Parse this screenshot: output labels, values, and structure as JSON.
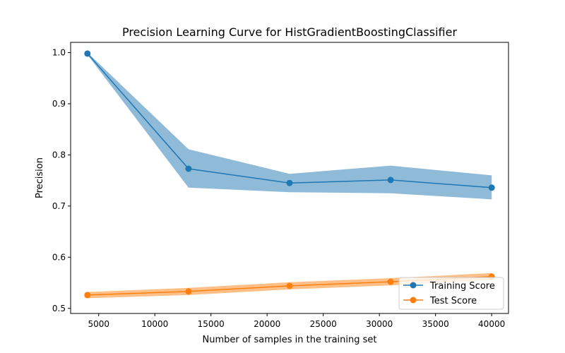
{
  "chart_data": {
    "type": "line",
    "title": "Precision Learning Curve for HistGradientBoostingClassifier",
    "xlabel": "Number of samples in the training set",
    "ylabel": "Precision",
    "xlim": [
      2500,
      41500
    ],
    "ylim": [
      0.49,
      1.02
    ],
    "xticks": [
      5000,
      10000,
      15000,
      20000,
      25000,
      30000,
      35000,
      40000
    ],
    "yticks": [
      0.5,
      0.6,
      0.7,
      0.8,
      0.9,
      1.0
    ],
    "ytick_labels": [
      "0.5",
      "0.6",
      "0.7",
      "0.8",
      "0.9",
      "1.0"
    ],
    "x": [
      4000,
      13000,
      22000,
      31000,
      40000
    ],
    "series": [
      {
        "name": "Training Score",
        "color": "#1f77b4",
        "values": [
          0.998,
          0.773,
          0.745,
          0.751,
          0.736
        ],
        "lower": [
          0.996,
          0.736,
          0.727,
          0.725,
          0.713
        ],
        "upper": [
          1.0,
          0.811,
          0.763,
          0.779,
          0.76
        ]
      },
      {
        "name": "Test Score",
        "color": "#ff7f0e",
        "values": [
          0.526,
          0.533,
          0.544,
          0.552,
          0.562
        ],
        "lower": [
          0.52,
          0.526,
          0.537,
          0.545,
          0.555
        ],
        "upper": [
          0.532,
          0.54,
          0.551,
          0.559,
          0.569
        ]
      }
    ],
    "grid": false,
    "legend": "lower-right"
  }
}
